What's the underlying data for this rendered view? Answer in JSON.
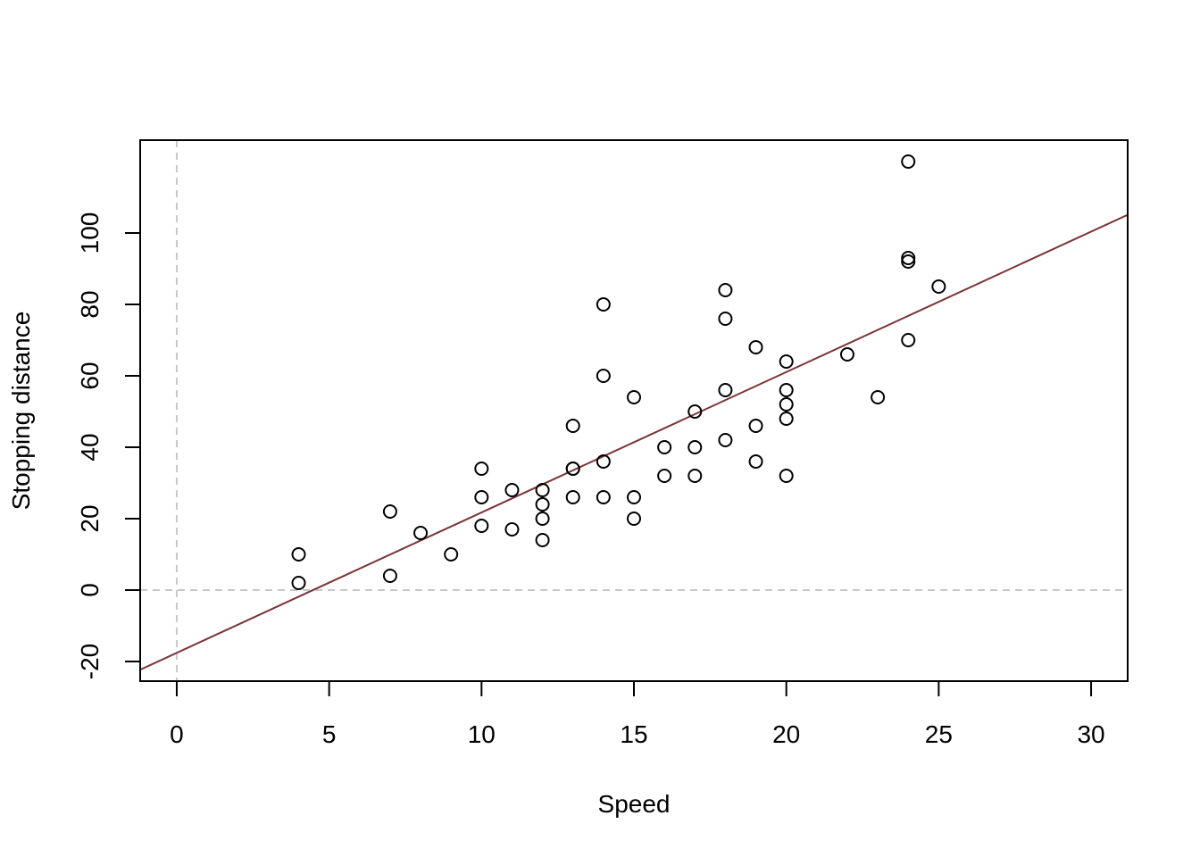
{
  "chart_data": {
    "type": "scatter",
    "title": "",
    "xlabel": "Speed",
    "ylabel": "Stopping distance",
    "xlim": [
      -1.2,
      31.2
    ],
    "ylim": [
      -25.5,
      126
    ],
    "xticks": [
      0,
      5,
      10,
      15,
      20,
      25,
      30
    ],
    "yticks": [
      -20,
      0,
      20,
      40,
      60,
      80,
      100
    ],
    "grid": false,
    "legend": "none",
    "points": {
      "x": [
        4,
        4,
        7,
        7,
        8,
        9,
        10,
        10,
        10,
        11,
        11,
        12,
        12,
        12,
        12,
        13,
        13,
        13,
        13,
        14,
        14,
        14,
        14,
        15,
        15,
        15,
        16,
        16,
        17,
        17,
        17,
        18,
        18,
        18,
        18,
        19,
        19,
        19,
        20,
        20,
        20,
        20,
        20,
        22,
        23,
        24,
        24,
        24,
        24,
        25
      ],
      "y": [
        2,
        10,
        4,
        22,
        16,
        10,
        18,
        26,
        34,
        17,
        28,
        14,
        20,
        24,
        28,
        26,
        34,
        34,
        46,
        26,
        36,
        60,
        80,
        20,
        26,
        54,
        32,
        40,
        32,
        40,
        50,
        42,
        56,
        76,
        84,
        36,
        46,
        68,
        32,
        48,
        52,
        56,
        64,
        66,
        54,
        70,
        92,
        93,
        120,
        85
      ],
      "marker": "open-circle",
      "color": "#000000"
    },
    "regression_line": {
      "intercept": -17.579,
      "slope": 3.932,
      "color": "#7a3535"
    },
    "reference_lines": {
      "horizontal": 0,
      "vertical": 0,
      "style": "dashed",
      "color": "#c8c8c8"
    }
  }
}
